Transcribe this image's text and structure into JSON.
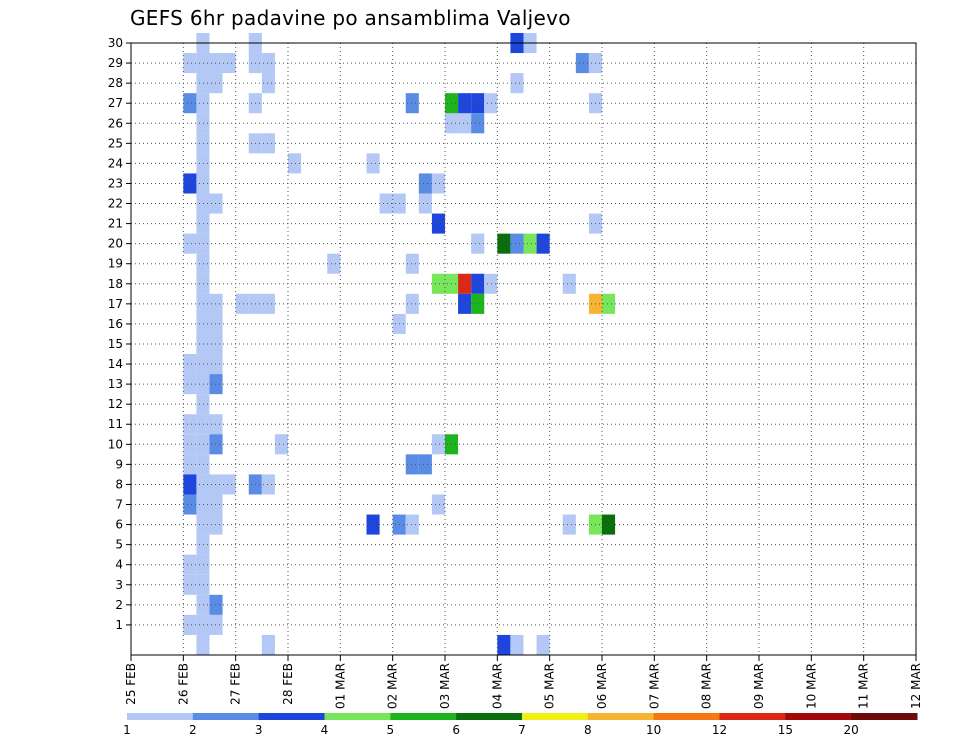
{
  "chart_data": {
    "type": "heatmap",
    "title": "GEFS 6hr padavine po ansamblima Valjevo",
    "x_ticks": [
      "25 FEB",
      "26 FEB",
      "27 FEB",
      "28 FEB",
      "01 MAR",
      "02 MAR",
      "03 MAR",
      "04 MAR",
      "05 MAR",
      "06 MAR",
      "07 MAR",
      "08 MAR",
      "09 MAR",
      "10 MAR",
      "11 MAR",
      "12 MAR"
    ],
    "y_ticks": [
      "1",
      "2",
      "3",
      "4",
      "5",
      "6",
      "7",
      "8",
      "9",
      "10",
      "11",
      "12",
      "13",
      "14",
      "15",
      "16",
      "17",
      "18",
      "19",
      "20",
      "21",
      "22",
      "23",
      "24",
      "25",
      "26",
      "27",
      "28",
      "29",
      "30"
    ],
    "colorbar": {
      "labels": [
        "1",
        "2",
        "3",
        "4",
        "5",
        "6",
        "7",
        "8",
        "10",
        "12",
        "15",
        "20"
      ],
      "colors": [
        "#b4c8f5",
        "#5a8ce6",
        "#1e46dc",
        "#78e65a",
        "#1eb41e",
        "#0a6e0a",
        "#f0f014",
        "#f5b432",
        "#f57814",
        "#dc2814",
        "#a00a0a",
        "#6e0a0a"
      ]
    },
    "x_unit": "6h steps from 25 FEB 00Z",
    "cells": [
      [
        5,
        30,
        1
      ],
      [
        5,
        29,
        1
      ],
      [
        5,
        28,
        1
      ],
      [
        5,
        27,
        1
      ],
      [
        5,
        26,
        1
      ],
      [
        5,
        25,
        1
      ],
      [
        5,
        24,
        1
      ],
      [
        5,
        23,
        1
      ],
      [
        5,
        22,
        1
      ],
      [
        5,
        21,
        1
      ],
      [
        5,
        20,
        1
      ],
      [
        5,
        19,
        1
      ],
      [
        5,
        18,
        1
      ],
      [
        5,
        17,
        1
      ],
      [
        5,
        16,
        1
      ],
      [
        5,
        15,
        1
      ],
      [
        5,
        14,
        1
      ],
      [
        5,
        13,
        1
      ],
      [
        5,
        12,
        1
      ],
      [
        5,
        11,
        1
      ],
      [
        5,
        10,
        1
      ],
      [
        5,
        9,
        1
      ],
      [
        5,
        8,
        1
      ],
      [
        5,
        7,
        1
      ],
      [
        5,
        6,
        1
      ],
      [
        5,
        5,
        1
      ],
      [
        5,
        4,
        1
      ],
      [
        5,
        3,
        1
      ],
      [
        5,
        2,
        1
      ],
      [
        5,
        1,
        1
      ],
      [
        5,
        0,
        1
      ],
      [
        4,
        29,
        1
      ],
      [
        6,
        29,
        1
      ],
      [
        7,
        29,
        1
      ],
      [
        4,
        27,
        2
      ],
      [
        4,
        23,
        3
      ],
      [
        4,
        20,
        1
      ],
      [
        4,
        14,
        1
      ],
      [
        4,
        13,
        1
      ],
      [
        4,
        11,
        1
      ],
      [
        4,
        10,
        1
      ],
      [
        4,
        9,
        1
      ],
      [
        4,
        8,
        3
      ],
      [
        4,
        7,
        2
      ],
      [
        4,
        4,
        1
      ],
      [
        4,
        3,
        1
      ],
      [
        4,
        1,
        1
      ],
      [
        6,
        28,
        1
      ],
      [
        6,
        22,
        1
      ],
      [
        6,
        17,
        1
      ],
      [
        6,
        16,
        1
      ],
      [
        6,
        15,
        1
      ],
      [
        6,
        14,
        1
      ],
      [
        6,
        13,
        2
      ],
      [
        6,
        11,
        1
      ],
      [
        6,
        10,
        2
      ],
      [
        6,
        8,
        1
      ],
      [
        7,
        8,
        1
      ],
      [
        6,
        7,
        1
      ],
      [
        6,
        6,
        1
      ],
      [
        6,
        1,
        1
      ],
      [
        6,
        2,
        2
      ],
      [
        8,
        17,
        1
      ],
      [
        9,
        17,
        1
      ],
      [
        10,
        17,
        1
      ],
      [
        9,
        29,
        1
      ],
      [
        10,
        29,
        1
      ],
      [
        9,
        27,
        1
      ],
      [
        9,
        25,
        1
      ],
      [
        10,
        25,
        1
      ],
      [
        10,
        28,
        1
      ],
      [
        9,
        30,
        1
      ],
      [
        9,
        8,
        2
      ],
      [
        10,
        8,
        1
      ],
      [
        10,
        0,
        1
      ],
      [
        11,
        10,
        1
      ],
      [
        12,
        24,
        1
      ],
      [
        15,
        19,
        1
      ],
      [
        18,
        24,
        1
      ],
      [
        18,
        6,
        3
      ],
      [
        19,
        22,
        1
      ],
      [
        20,
        22,
        1
      ],
      [
        20,
        16,
        1
      ],
      [
        20,
        6,
        2
      ],
      [
        21,
        27,
        2
      ],
      [
        21,
        19,
        1
      ],
      [
        21,
        17,
        1
      ],
      [
        21,
        9,
        2
      ],
      [
        22,
        9,
        2
      ],
      [
        21,
        6,
        1
      ],
      [
        22,
        23,
        2
      ],
      [
        22,
        22,
        1
      ],
      [
        23,
        23,
        1
      ],
      [
        23,
        21,
        3
      ],
      [
        23,
        18,
        4
      ],
      [
        23,
        10,
        1
      ],
      [
        23,
        7,
        1
      ],
      [
        24,
        26,
        1
      ],
      [
        25,
        26,
        1
      ],
      [
        24,
        18,
        4
      ],
      [
        25,
        18,
        10
      ],
      [
        24,
        10,
        5
      ],
      [
        24,
        27,
        5
      ],
      [
        25,
        27,
        3
      ],
      [
        26,
        27,
        3
      ],
      [
        27,
        27,
        1
      ],
      [
        26,
        26,
        2
      ],
      [
        26,
        20,
        1
      ],
      [
        26,
        18,
        3
      ],
      [
        27,
        18,
        1
      ],
      [
        25,
        17,
        3
      ],
      [
        26,
        17,
        5
      ],
      [
        28,
        20,
        6
      ],
      [
        29,
        20,
        2
      ],
      [
        30,
        20,
        4
      ],
      [
        31,
        20,
        3
      ],
      [
        29,
        30,
        3
      ],
      [
        30,
        30,
        1
      ],
      [
        28,
        0,
        3
      ],
      [
        29,
        0,
        1
      ],
      [
        31,
        0,
        1
      ],
      [
        29,
        28,
        1
      ],
      [
        34,
        29,
        2
      ],
      [
        35,
        29,
        1
      ],
      [
        35,
        27,
        1
      ],
      [
        35,
        21,
        1
      ],
      [
        33,
        18,
        1
      ],
      [
        35,
        17,
        8
      ],
      [
        36,
        17,
        4
      ],
      [
        33,
        6,
        1
      ],
      [
        35,
        6,
        4
      ],
      [
        36,
        6,
        6
      ]
    ]
  }
}
